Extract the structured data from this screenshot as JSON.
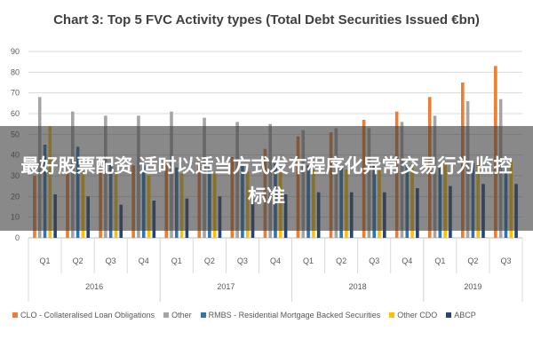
{
  "chart_data": {
    "type": "bar",
    "title": "Chart 3: Top 5 FVC Activity types (Total Debt Securities Issued €bn)",
    "xlabel": "",
    "ylabel": "",
    "ylim": [
      0,
      90
    ],
    "yticks": [
      0,
      10,
      20,
      30,
      40,
      50,
      60,
      70,
      80,
      90
    ],
    "grid": true,
    "legend_position": "bottom",
    "groups": [
      {
        "year": "2016",
        "quarters": [
          "Q1",
          "Q2",
          "Q3",
          "Q4"
        ]
      },
      {
        "year": "2017",
        "quarters": [
          "Q1",
          "Q2",
          "Q3",
          "Q4"
        ]
      },
      {
        "year": "2018",
        "quarters": [
          "Q1",
          "Q2",
          "Q3",
          "Q4"
        ]
      },
      {
        "year": "2019",
        "quarters": [
          "Q1",
          "Q2",
          "Q3"
        ]
      }
    ],
    "series": [
      {
        "name": "CLO - Collateralised Loan Obligations",
        "color": "#ED7D31",
        "values": [
          30,
          32,
          33,
          35,
          36,
          37,
          39,
          43,
          49,
          51,
          57,
          61,
          68,
          75,
          83
        ]
      },
      {
        "name": "Other",
        "color": "#A5A5A5",
        "values": [
          68,
          61,
          59,
          59,
          61,
          58,
          56,
          55,
          52,
          53,
          53,
          56,
          59,
          66,
          67
        ]
      },
      {
        "name": "RMBS - Residential Mortgage Backed Securities",
        "color": "#2E75B6",
        "values": [
          45,
          44,
          36,
          35,
          34,
          34,
          35,
          36,
          35,
          35,
          35,
          35,
          34,
          36,
          35
        ]
      },
      {
        "name": "Other CDO",
        "color": "#FFC000",
        "values": [
          54,
          32,
          31,
          30,
          31,
          31,
          32,
          32,
          33,
          33,
          33,
          34,
          36,
          38,
          37
        ]
      },
      {
        "name": "ABCP",
        "color": "#264478",
        "values": [
          21,
          20,
          16,
          18,
          19,
          20,
          19,
          21,
          22,
          22,
          22,
          24,
          25,
          26,
          26
        ]
      }
    ]
  },
  "overlay": {
    "text": "最好股票配资 适时以适当方式发布程序化异常交易行为监控标准"
  }
}
